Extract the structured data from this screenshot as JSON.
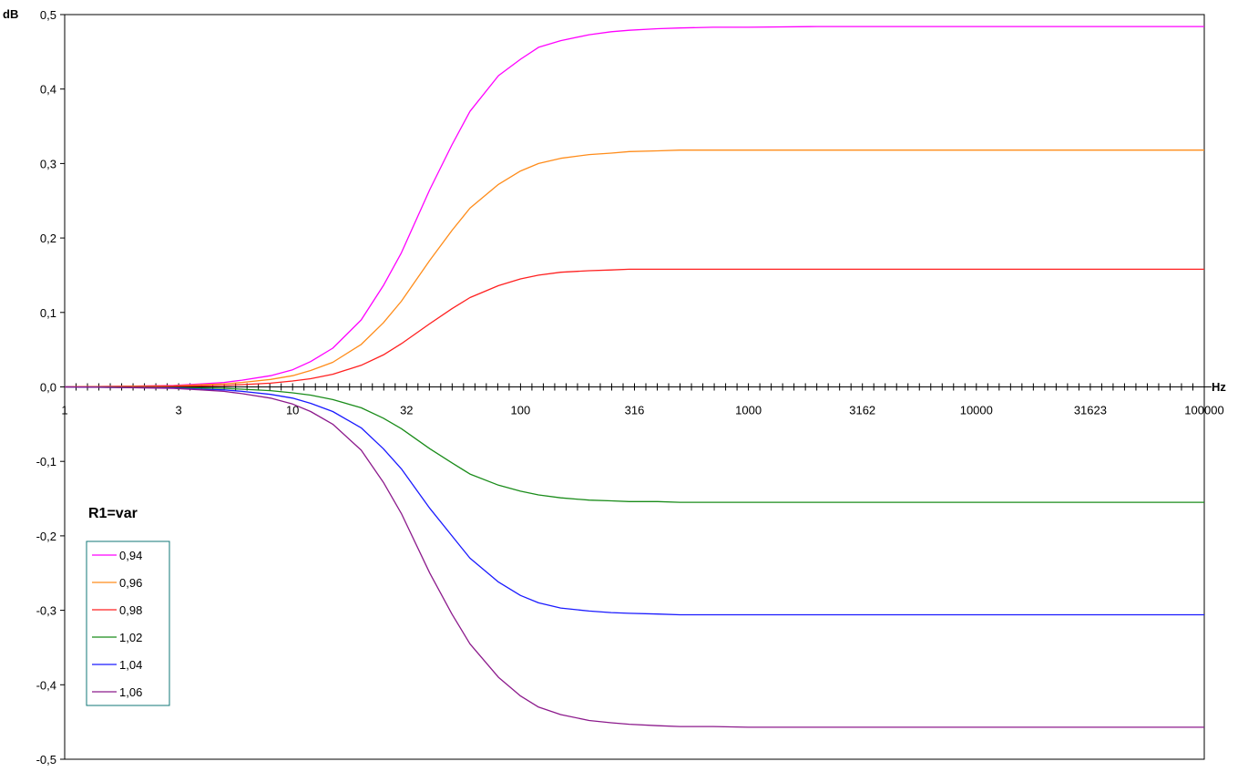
{
  "chart_data": {
    "type": "line",
    "x_scale": "log",
    "ylabel": "dB",
    "xlabel": "Hz",
    "xlim": [
      1,
      100000
    ],
    "ylim": [
      -0.5,
      0.5
    ],
    "x_tick_labels": [
      "1",
      "3",
      "10",
      "32",
      "100",
      "316",
      "1000",
      "3162",
      "10000",
      "31623",
      "100000"
    ],
    "y_tick_labels": [
      "0,5",
      "0,4",
      "0,3",
      "0,2",
      "0,1",
      "0,0",
      "-0,1",
      "-0,2",
      "-0,3",
      "-0,4",
      "-0,5"
    ],
    "y_tick_values": [
      0.5,
      0.4,
      0.3,
      0.2,
      0.1,
      0.0,
      -0.1,
      -0.2,
      -0.3,
      -0.4,
      -0.5
    ],
    "grid": false,
    "legend_title": "R1=var",
    "legend_position": "left",
    "x": [
      1,
      2,
      3,
      4,
      5,
      6,
      8,
      10,
      12,
      15,
      20,
      25,
      30,
      40,
      50,
      60,
      80,
      100,
      120,
      150,
      200,
      250,
      300,
      400,
      500,
      700,
      1000,
      2000,
      5000,
      10000,
      100000
    ],
    "series": [
      {
        "name": "0,94",
        "color": "#ff00ff",
        "values": [
          0.0,
          0.001,
          0.002,
          0.004,
          0.006,
          0.009,
          0.015,
          0.023,
          0.034,
          0.052,
          0.09,
          0.136,
          0.18,
          0.265,
          0.325,
          0.37,
          0.418,
          0.44,
          0.456,
          0.465,
          0.473,
          0.477,
          0.479,
          0.481,
          0.482,
          0.483,
          0.483,
          0.484,
          0.484,
          0.484,
          0.484
        ]
      },
      {
        "name": "0,96",
        "color": "#ff8c1a",
        "values": [
          0.0,
          0.001,
          0.0015,
          0.003,
          0.004,
          0.006,
          0.01,
          0.015,
          0.022,
          0.033,
          0.057,
          0.086,
          0.115,
          0.17,
          0.21,
          0.24,
          0.272,
          0.29,
          0.3,
          0.307,
          0.312,
          0.314,
          0.316,
          0.317,
          0.318,
          0.318,
          0.318,
          0.318,
          0.318,
          0.318,
          0.318
        ]
      },
      {
        "name": "0,98",
        "color": "#ff2020",
        "values": [
          0.0,
          0.0005,
          0.001,
          0.0015,
          0.002,
          0.003,
          0.005,
          0.008,
          0.011,
          0.017,
          0.029,
          0.043,
          0.058,
          0.085,
          0.105,
          0.12,
          0.136,
          0.145,
          0.15,
          0.154,
          0.156,
          0.157,
          0.158,
          0.158,
          0.158,
          0.158,
          0.158,
          0.158,
          0.158,
          0.158,
          0.158
        ]
      },
      {
        "name": "1,02",
        "color": "#1a8c1a",
        "values": [
          0.0,
          -0.0005,
          -0.001,
          -0.0015,
          -0.002,
          -0.003,
          -0.005,
          -0.008,
          -0.011,
          -0.017,
          -0.028,
          -0.042,
          -0.056,
          -0.083,
          -0.102,
          -0.117,
          -0.132,
          -0.14,
          -0.145,
          -0.149,
          -0.152,
          -0.153,
          -0.154,
          -0.154,
          -0.155,
          -0.155,
          -0.155,
          -0.155,
          -0.155,
          -0.155,
          -0.155
        ]
      },
      {
        "name": "1,04",
        "color": "#1a1aff",
        "values": [
          0.0,
          -0.001,
          -0.0015,
          -0.003,
          -0.004,
          -0.006,
          -0.01,
          -0.015,
          -0.022,
          -0.033,
          -0.055,
          -0.083,
          -0.11,
          -0.163,
          -0.2,
          -0.23,
          -0.262,
          -0.28,
          -0.29,
          -0.297,
          -0.301,
          -0.303,
          -0.304,
          -0.305,
          -0.306,
          -0.306,
          -0.306,
          -0.306,
          -0.306,
          -0.306,
          -0.306
        ]
      },
      {
        "name": "1,06",
        "color": "#8c1a8c",
        "values": [
          0.0,
          -0.001,
          -0.002,
          -0.004,
          -0.006,
          -0.009,
          -0.015,
          -0.023,
          -0.033,
          -0.05,
          -0.085,
          -0.128,
          -0.17,
          -0.25,
          -0.305,
          -0.345,
          -0.39,
          -0.415,
          -0.43,
          -0.44,
          -0.448,
          -0.451,
          -0.453,
          -0.455,
          -0.456,
          -0.456,
          -0.457,
          -0.457,
          -0.457,
          -0.457,
          -0.457
        ]
      }
    ]
  }
}
